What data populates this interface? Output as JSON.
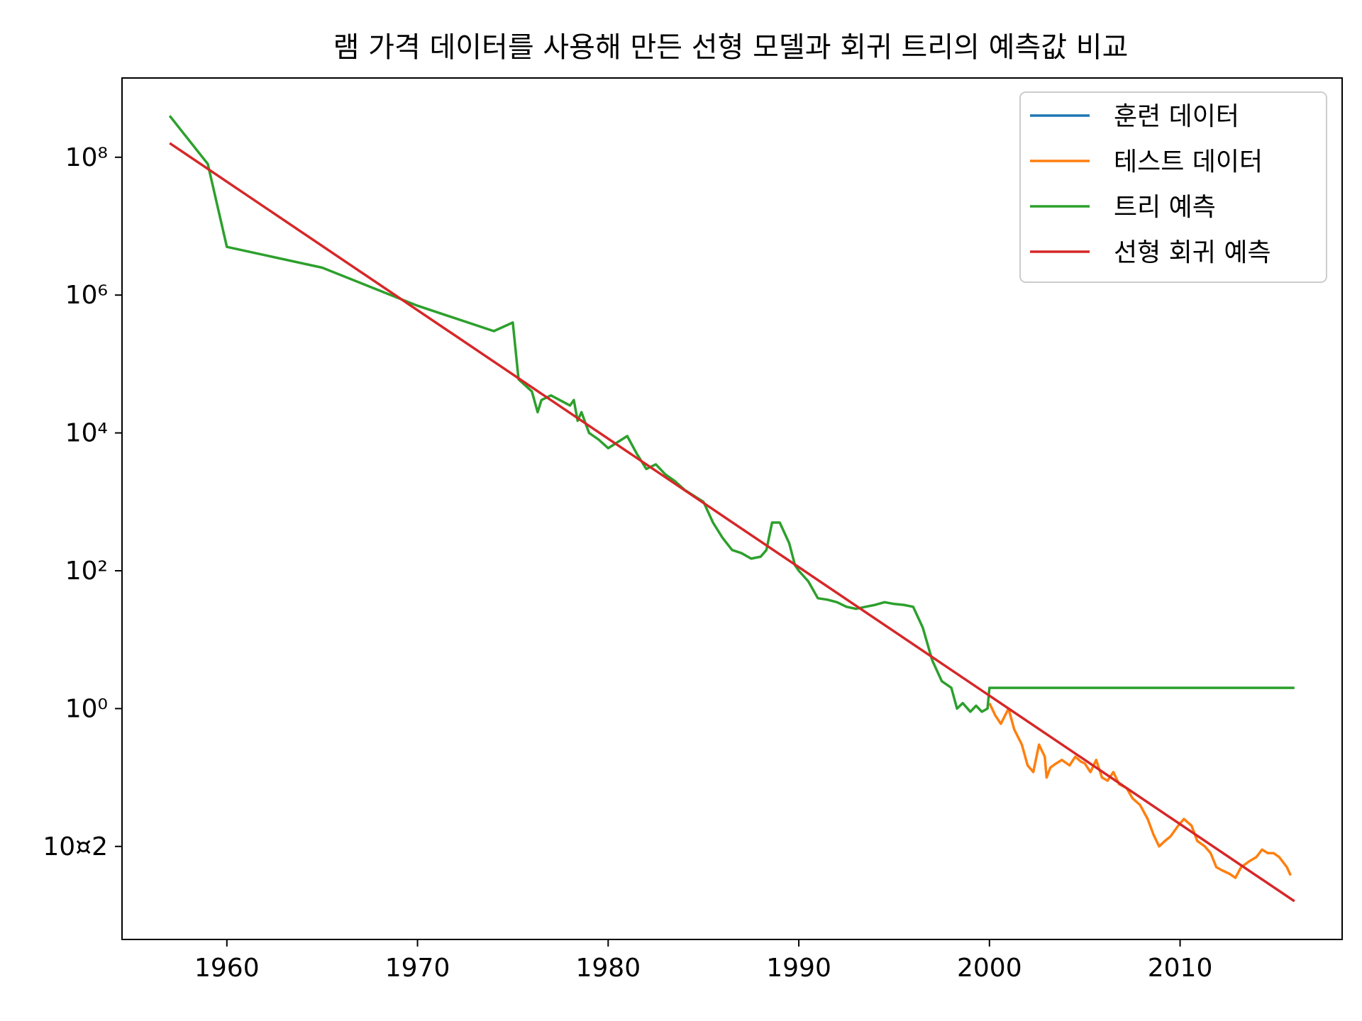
{
  "chart_data": {
    "type": "line",
    "title": "램 가격 데이터를 사용해 만든 선형 모델과 회귀 트리의 예측값 비교",
    "xlabel": "",
    "ylabel": "",
    "x_scale": "linear",
    "y_scale": "log",
    "xlim": [
      1954.5,
      2018.5
    ],
    "ylim_log10": [
      -3.35,
      9.15
    ],
    "x_ticks": [
      1960,
      1970,
      1980,
      1990,
      2000,
      2010
    ],
    "x_tick_labels": [
      "1960",
      "1970",
      "1980",
      "1990",
      "2000",
      "2010"
    ],
    "y_ticks": [
      100000000.0,
      1000000.0,
      10000.0,
      100,
      1,
      0.01
    ],
    "y_tick_labels": [
      "10⁸",
      "10⁶",
      "10⁴",
      "10²",
      "10⁰",
      "10¤2"
    ],
    "grid": false,
    "legend_position": "top-right",
    "series": [
      {
        "name": "훈련 데이터",
        "color": "#1f77b4",
        "x": [],
        "y": []
      },
      {
        "name": "테스트 데이터",
        "color": "#ff7f0e",
        "x": [
          2000.0,
          2000.3,
          2000.6,
          2001.0,
          2001.3,
          2001.7,
          2002.0,
          2002.3,
          2002.6,
          2002.9,
          2003.0,
          2003.2,
          2003.5,
          2003.8,
          2004.2,
          2004.5,
          2004.8,
          2005.0,
          2005.3,
          2005.6,
          2005.9,
          2006.2,
          2006.5,
          2006.8,
          2007.2,
          2007.5,
          2007.9,
          2008.3,
          2008.6,
          2008.9,
          2009.2,
          2009.5,
          2009.9,
          2010.2,
          2010.6,
          2010.9,
          2011.3,
          2011.6,
          2011.9,
          2012.2,
          2012.6,
          2012.9,
          2013.2,
          2013.6,
          2014.0,
          2014.3,
          2014.6,
          2014.9,
          2015.2,
          2015.6,
          2015.8
        ],
        "y": [
          1.2,
          0.8,
          0.6,
          1.0,
          0.5,
          0.3,
          0.15,
          0.12,
          0.3,
          0.2,
          0.1,
          0.14,
          0.16,
          0.18,
          0.15,
          0.2,
          0.17,
          0.16,
          0.12,
          0.18,
          0.1,
          0.09,
          0.12,
          0.08,
          0.07,
          0.05,
          0.04,
          0.025,
          0.015,
          0.01,
          0.012,
          0.014,
          0.02,
          0.025,
          0.02,
          0.012,
          0.01,
          0.008,
          0.005,
          0.0045,
          0.004,
          0.0035,
          0.005,
          0.006,
          0.007,
          0.009,
          0.008,
          0.008,
          0.007,
          0.005,
          0.0038
        ]
      },
      {
        "name": "트리 예측",
        "color": "#2ca02c",
        "x": [
          1957.0,
          1959.0,
          1960.0,
          1965.0,
          1970.0,
          1974.0,
          1975.0,
          1975.3,
          1976.0,
          1976.3,
          1976.5,
          1977.0,
          1978.0,
          1978.2,
          1978.4,
          1978.6,
          1979.0,
          1979.5,
          1980.0,
          1981.0,
          1981.5,
          1982.0,
          1982.5,
          1983.0,
          1983.5,
          1984.0,
          1985.0,
          1985.5,
          1986.0,
          1986.5,
          1987.0,
          1987.5,
          1988.0,
          1988.3,
          1988.6,
          1989.0,
          1989.5,
          1989.8,
          1990.0,
          1990.5,
          1991.0,
          1991.5,
          1992.0,
          1992.5,
          1993.0,
          1993.5,
          1994.0,
          1994.5,
          1995.0,
          1995.5,
          1996.0,
          1996.5,
          1997.0,
          1997.5,
          1998.0,
          1998.3,
          1998.6,
          1999.0,
          1999.3,
          1999.6,
          1999.9,
          2000.0,
          2016.0
        ],
        "y": [
          400000000,
          80000000,
          5000000,
          2500000,
          700000,
          300000,
          400000,
          60000,
          40000,
          20000,
          30000,
          35000,
          25000,
          30000,
          15000,
          20000,
          10000,
          8000,
          6000,
          9000,
          5000,
          3000,
          3500,
          2500,
          2000,
          1500,
          1000,
          500,
          300,
          200,
          180,
          150,
          160,
          200,
          500,
          500,
          250,
          120,
          100,
          70,
          40,
          38,
          35,
          30,
          28,
          30,
          32,
          35,
          33,
          32,
          30,
          15,
          5,
          2.5,
          2,
          1,
          1.2,
          0.9,
          1.1,
          0.9,
          1.0,
          2.0,
          2.0
        ]
      },
      {
        "name": "선형 회귀 예측",
        "color": "#d62728",
        "x": [
          1957.0,
          2016.0
        ],
        "y": [
          160000000,
          0.0016
        ]
      }
    ]
  }
}
